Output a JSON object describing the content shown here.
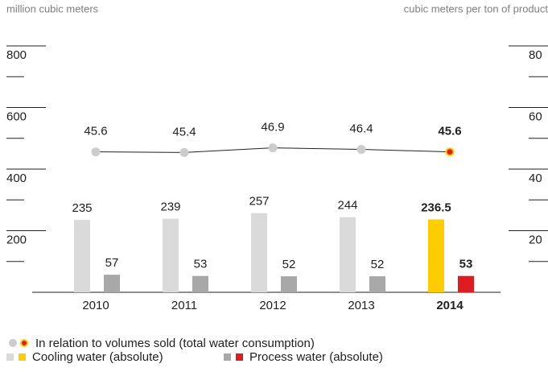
{
  "chart_data": {
    "type": "bar",
    "y_label": "million cubic meters",
    "y2_label": "cubic meters per ton of product",
    "categories": [
      "2010",
      "2011",
      "2012",
      "2013",
      "2014"
    ],
    "highlight": "2014",
    "ylim": [
      0,
      800
    ],
    "yticks": [
      200,
      400,
      600,
      800
    ],
    "yminor_ticks": [
      100,
      300,
      500,
      700
    ],
    "y2lim": [
      0,
      80
    ],
    "y2ticks": [
      20,
      40,
      60,
      80
    ],
    "y2minor_ticks": [
      10,
      30,
      50,
      70
    ],
    "series": [
      {
        "name": "In relation to volumes sold (total water consumption)",
        "type": "line",
        "axis": "y2",
        "color": "#cccccc",
        "highlight_color": "#dd1d21",
        "highlight_ring": "#ffcc00",
        "line_color": "#222222",
        "values": [
          45.6,
          45.4,
          46.9,
          46.4,
          45.6
        ]
      },
      {
        "name": "Cooling water (absolute)",
        "type": "bar",
        "color": "#dadada",
        "highlight_color": "#ffcc00",
        "values": [
          235,
          239,
          257,
          244,
          236.5
        ]
      },
      {
        "name": "Process water (absolute)",
        "type": "bar",
        "color": "#a8a8a8",
        "highlight_color": "#dd1d21",
        "values": [
          57,
          53,
          52,
          52,
          53
        ]
      }
    ]
  }
}
